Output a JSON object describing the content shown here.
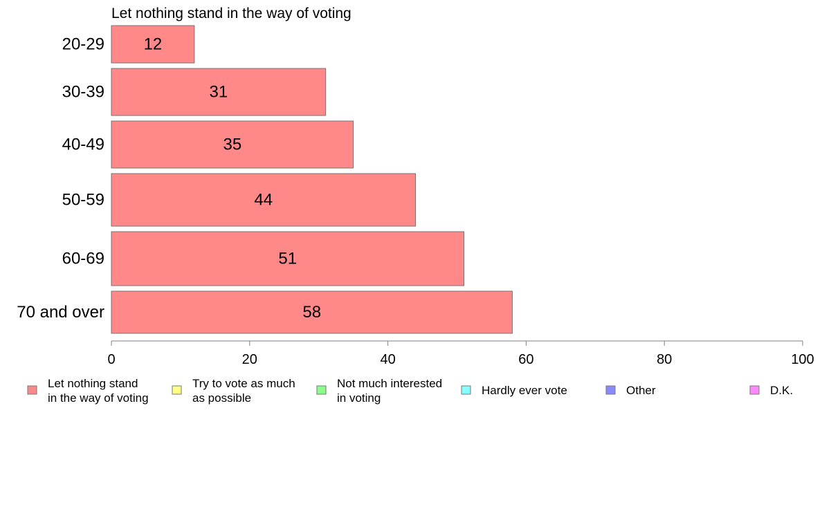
{
  "chart_data": {
    "type": "bar",
    "orientation": "horizontal",
    "title": "Let nothing stand in the way of voting",
    "xlabel": "",
    "ylabel": "",
    "categories": [
      "20-29",
      "30-39",
      "40-49",
      "50-59",
      "60-69",
      "70 and over"
    ],
    "series": [
      {
        "name": "Let nothing stand in the way of voting",
        "values": [
          12,
          31,
          35,
          44,
          51,
          58
        ]
      }
    ],
    "value_labels": [
      "12",
      "31",
      "35",
      "44",
      "51",
      "58"
    ],
    "xlim": [
      0,
      100
    ],
    "xticks": [
      0,
      20,
      40,
      60,
      80,
      100
    ],
    "xtick_labels": [
      "0",
      "20",
      "40",
      "60",
      "80",
      "100"
    ],
    "grid": false,
    "legend_position": "bottom",
    "legend": [
      {
        "lines": [
          "Let nothing stand",
          "in the way of voting"
        ],
        "color": "#ff8888"
      },
      {
        "lines": [
          "Try to vote as much",
          "as possible"
        ],
        "color": "#ffff88"
      },
      {
        "lines": [
          "Not much interested",
          "in voting"
        ],
        "color": "#88ff88"
      },
      {
        "lines": [
          "Hardly ever vote"
        ],
        "color": "#88ffff"
      },
      {
        "lines": [
          "Other"
        ],
        "color": "#8888ff"
      },
      {
        "lines": [
          "D.K."
        ],
        "color": "#ff88ff"
      }
    ],
    "bar_color": "#ff8888",
    "bar_stroke": "#7f6f6f",
    "axis_color": "#808080"
  }
}
